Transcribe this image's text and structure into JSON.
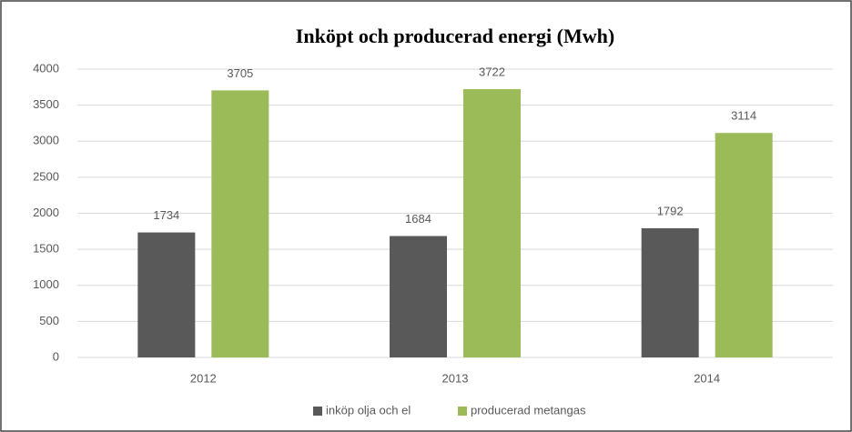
{
  "chart_data": {
    "type": "bar",
    "title": "Inköpt och producerad energi (Mwh)",
    "categories": [
      "2012",
      "2013",
      "2014"
    ],
    "series": [
      {
        "name": "inköp olja och el",
        "color": "#595959",
        "values": [
          1734,
          1684,
          1792
        ]
      },
      {
        "name": "producerad metangas",
        "color": "#9bbb59",
        "values": [
          3705,
          3722,
          3114
        ]
      }
    ],
    "ylim": [
      0,
      4000
    ],
    "yticks": [
      0,
      500,
      1000,
      1500,
      2000,
      2500,
      3000,
      3500,
      4000
    ],
    "grid": true,
    "legend": "bottom"
  }
}
